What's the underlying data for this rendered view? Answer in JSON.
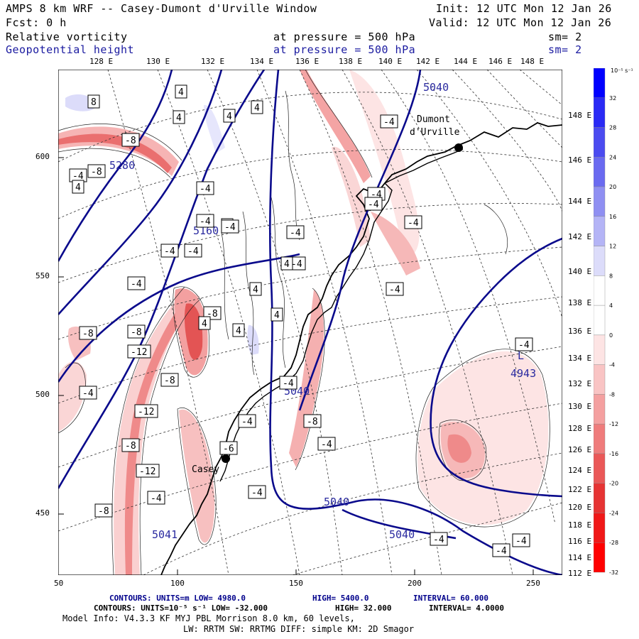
{
  "header": {
    "model": "AMPS 8 km WRF -- Casey-Dumont d'Urville Window",
    "init": "Init: 12 UTC Mon 12 Jan 26",
    "forecast": "Fcst:    0 h",
    "valid": "Valid: 12 UTC Mon 12 Jan 26",
    "field1": {
      "name": "Relative vorticity",
      "level": "at pressure =  500 hPa",
      "smooth": "sm= 2"
    },
    "field2": {
      "name": "Geopotential height",
      "level": "at pressure =  500 hPa",
      "smooth": "sm= 2"
    }
  },
  "map": {
    "top_lon_labels": [
      "128 E",
      "130 E",
      "132 E",
      "134 E",
      "136 E",
      "138 E",
      "140 E",
      "142 E",
      "144 E",
      "146 E",
      "148 E"
    ],
    "right_lat_labels": [
      "148 E",
      "146 E",
      "144 E",
      "142 E",
      "140 E",
      "138 E",
      "136 E",
      "134 E",
      "132 E",
      "130 E",
      "128 E",
      "126 E",
      "124 E",
      "122 E",
      "120 E",
      "118 E",
      "116 E",
      "114 E",
      "112 E"
    ],
    "x_ticks": [
      "50",
      "100",
      "150",
      "200",
      "250"
    ],
    "y_ticks": [
      "600",
      "550",
      "500",
      "450"
    ],
    "stations": [
      {
        "name": "Dumont d'Urville",
        "label1": "Dumont",
        "label2": "d'Urville"
      },
      {
        "name": "Casey",
        "label1": "Casey"
      }
    ],
    "height_labels": [
      "5040",
      "5280",
      "5160",
      "5040",
      "5040",
      "5040",
      "5041",
      "4943"
    ],
    "low_symbol": "L",
    "vort_boxes": [
      "8",
      "4",
      "4",
      "4",
      "4",
      "-8",
      "-4",
      "-8",
      "4",
      "4",
      "-4",
      "-4",
      "-4",
      "-4",
      "-4",
      "-4",
      "-4",
      "-4",
      "-4",
      "-4",
      "-4",
      "4",
      "4",
      "-8",
      "-8",
      "-12",
      "-8",
      "4",
      "-4",
      "-4",
      "-8",
      "-4",
      "-12",
      "-8",
      "-6",
      "-12",
      "-4",
      "-4",
      "-8",
      "-4",
      "-4",
      "-4",
      "-4",
      "-4",
      "-4",
      "-8",
      "4",
      "4",
      "-4"
    ]
  },
  "colorbar": {
    "unit": "10⁻⁵ s⁻¹",
    "labels": [
      "32",
      "28",
      "24",
      "20",
      "16",
      "12",
      "8",
      "4",
      "0",
      "-4",
      "-8",
      "-12",
      "-16",
      "-20",
      "-24",
      "-28",
      "-32"
    ],
    "colors": [
      "#0000ff",
      "#2a2af5",
      "#4b4bf0",
      "#6a6af0",
      "#8f8ff2",
      "#b4b4f6",
      "#dcdcfa",
      "#ffffff",
      "#ffffff",
      "#fde4e4",
      "#f9c4c4",
      "#f4a0a0",
      "#ef7c7c",
      "#ea5858",
      "#e63434",
      "#f01818",
      "#ff0000"
    ]
  },
  "footer": {
    "line1_a": "CONTOURS:  UNITS=m  LOW=  4980.0",
    "line1_b": "HIGH=  5400.0",
    "line1_c": "INTERVAL=   60.000",
    "line2_a": "CONTOURS:  UNITS=10⁻⁵ s⁻¹  LOW= -32.000",
    "line2_b": "HIGH=  32.000",
    "line2_c": "INTERVAL=   4.0000",
    "line3": "Model Info: V4.3.3   KF     MYJ PBL  Morrison            8.0 km,  60 levels,",
    "line4": "LW: RRTM SW: RRTMG   DIFF: simple KM: 2D Smagor"
  }
}
